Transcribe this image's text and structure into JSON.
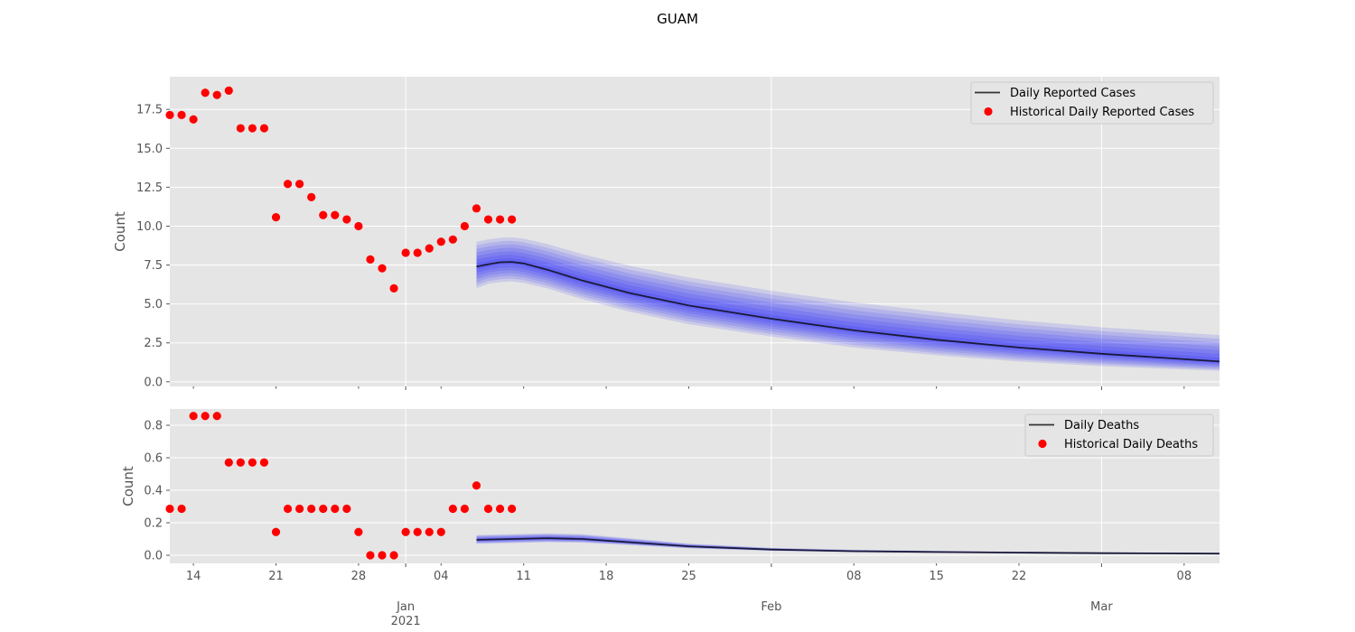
{
  "title": "GUAM",
  "colors": {
    "panel_bg": "#e5e5e5",
    "grid": "#ffffff",
    "model_line": "#1a1a3a",
    "band": "#0000ff",
    "historical": "#ff0000"
  },
  "x_axis": {
    "major_ticks": [
      {
        "date": "2021-01-01",
        "label": "Jan",
        "year": "2021"
      },
      {
        "date": "2021-02-01",
        "label": "Feb",
        "year": ""
      },
      {
        "date": "2021-03-01",
        "label": "Mar",
        "year": ""
      }
    ],
    "minor_ticks": [
      {
        "date": "2020-12-14",
        "label": "14"
      },
      {
        "date": "2020-12-21",
        "label": "21"
      },
      {
        "date": "2020-12-28",
        "label": "28"
      },
      {
        "date": "2021-01-04",
        "label": "04"
      },
      {
        "date": "2021-01-11",
        "label": "11"
      },
      {
        "date": "2021-01-18",
        "label": "18"
      },
      {
        "date": "2021-01-25",
        "label": "25"
      },
      {
        "date": "2021-02-08",
        "label": "08"
      },
      {
        "date": "2021-02-15",
        "label": "15"
      },
      {
        "date": "2021-02-22",
        "label": "22"
      },
      {
        "date": "2021-03-08",
        "label": "08"
      }
    ],
    "range": [
      "2020-12-12",
      "2021-03-11"
    ]
  },
  "chart_data": [
    {
      "type": "line",
      "ylabel": "Count",
      "ylim": [
        -0.3,
        19.6
      ],
      "yticks": [
        0.0,
        2.5,
        5.0,
        7.5,
        10.0,
        12.5,
        15.0,
        17.5
      ],
      "ytick_labels": [
        "0.0",
        "2.5",
        "5.0",
        "7.5",
        "10.0",
        "12.5",
        "15.0",
        "17.5"
      ],
      "grid": true,
      "legend_position": "top-right",
      "legend": [
        "Daily Reported Cases",
        "Historical Daily Reported Cases"
      ],
      "historical": {
        "name": "Historical Daily Reported Cases",
        "x": [
          "2020-12-12",
          "2020-12-13",
          "2020-12-14",
          "2020-12-15",
          "2020-12-16",
          "2020-12-17",
          "2020-12-18",
          "2020-12-19",
          "2020-12-20",
          "2020-12-21",
          "2020-12-22",
          "2020-12-23",
          "2020-12-24",
          "2020-12-25",
          "2020-12-26",
          "2020-12-27",
          "2020-12-28",
          "2020-12-29",
          "2020-12-30",
          "2020-12-31",
          "2021-01-01",
          "2021-01-02",
          "2021-01-03",
          "2021-01-04",
          "2021-01-05",
          "2021-01-06",
          "2021-01-07",
          "2021-01-08",
          "2021-01-09",
          "2021-01-10"
        ],
        "values": [
          17.14,
          17.14,
          16.86,
          18.57,
          18.43,
          18.71,
          16.29,
          16.29,
          16.29,
          10.57,
          12.71,
          12.71,
          11.86,
          10.71,
          10.71,
          10.43,
          10.0,
          7.86,
          7.29,
          6.0,
          8.29,
          8.29,
          8.57,
          9.0,
          9.14,
          10.0,
          11.14,
          10.43,
          10.43,
          10.43
        ]
      },
      "forecast": {
        "name": "Daily Reported Cases",
        "x": [
          "2021-01-07",
          "2021-01-08",
          "2021-01-09",
          "2021-01-10",
          "2021-01-11",
          "2021-01-13",
          "2021-01-16",
          "2021-01-20",
          "2021-01-25",
          "2021-02-01",
          "2021-02-08",
          "2021-02-15",
          "2021-02-22",
          "2021-03-01",
          "2021-03-11"
        ],
        "values": [
          7.4,
          7.55,
          7.68,
          7.7,
          7.6,
          7.2,
          6.5,
          5.7,
          4.9,
          4.05,
          3.3,
          2.7,
          2.2,
          1.8,
          1.3
        ],
        "lower": [
          6.0,
          6.3,
          6.4,
          6.45,
          6.35,
          6.0,
          5.3,
          4.5,
          3.7,
          2.9,
          2.2,
          1.7,
          1.3,
          1.0,
          0.7
        ],
        "upper": [
          9.0,
          9.15,
          9.25,
          9.28,
          9.2,
          8.85,
          8.2,
          7.45,
          6.7,
          5.85,
          5.1,
          4.5,
          3.95,
          3.5,
          3.0
        ]
      }
    },
    {
      "type": "line",
      "ylabel": "Count",
      "ylim": [
        -0.05,
        0.9
      ],
      "yticks": [
        0.0,
        0.2,
        0.4,
        0.6,
        0.8
      ],
      "ytick_labels": [
        "0.0",
        "0.2",
        "0.4",
        "0.6",
        "0.8"
      ],
      "grid": true,
      "legend_position": "top-right",
      "legend": [
        "Daily Deaths",
        "Historical Daily Deaths"
      ],
      "historical": {
        "name": "Historical Daily Deaths",
        "x": [
          "2020-12-12",
          "2020-12-13",
          "2020-12-14",
          "2020-12-15",
          "2020-12-16",
          "2020-12-17",
          "2020-12-18",
          "2020-12-19",
          "2020-12-20",
          "2020-12-21",
          "2020-12-22",
          "2020-12-23",
          "2020-12-24",
          "2020-12-25",
          "2020-12-26",
          "2020-12-27",
          "2020-12-28",
          "2020-12-29",
          "2020-12-30",
          "2020-12-31",
          "2021-01-01",
          "2021-01-02",
          "2021-01-03",
          "2021-01-04",
          "2021-01-05",
          "2021-01-06",
          "2021-01-07",
          "2021-01-08",
          "2021-01-09",
          "2021-01-10"
        ],
        "values": [
          0.286,
          0.286,
          0.857,
          0.857,
          0.857,
          0.571,
          0.571,
          0.571,
          0.571,
          0.143,
          0.286,
          0.286,
          0.286,
          0.286,
          0.286,
          0.286,
          0.143,
          0.0,
          0.0,
          0.0,
          0.143,
          0.143,
          0.143,
          0.143,
          0.286,
          0.286,
          0.429,
          0.286,
          0.286,
          0.286
        ]
      },
      "forecast": {
        "name": "Daily Deaths",
        "x": [
          "2021-01-07",
          "2021-01-10",
          "2021-01-13",
          "2021-01-16",
          "2021-01-20",
          "2021-01-25",
          "2021-02-01",
          "2021-02-08",
          "2021-02-15",
          "2021-02-22",
          "2021-03-01",
          "2021-03-11"
        ],
        "values": [
          0.095,
          0.1,
          0.105,
          0.1,
          0.08,
          0.055,
          0.035,
          0.025,
          0.02,
          0.016,
          0.013,
          0.01
        ],
        "lower": [
          0.07,
          0.075,
          0.08,
          0.077,
          0.062,
          0.042,
          0.027,
          0.019,
          0.015,
          0.012,
          0.01,
          0.007
        ],
        "upper": [
          0.125,
          0.13,
          0.135,
          0.13,
          0.105,
          0.072,
          0.046,
          0.034,
          0.027,
          0.022,
          0.018,
          0.014
        ]
      }
    }
  ]
}
